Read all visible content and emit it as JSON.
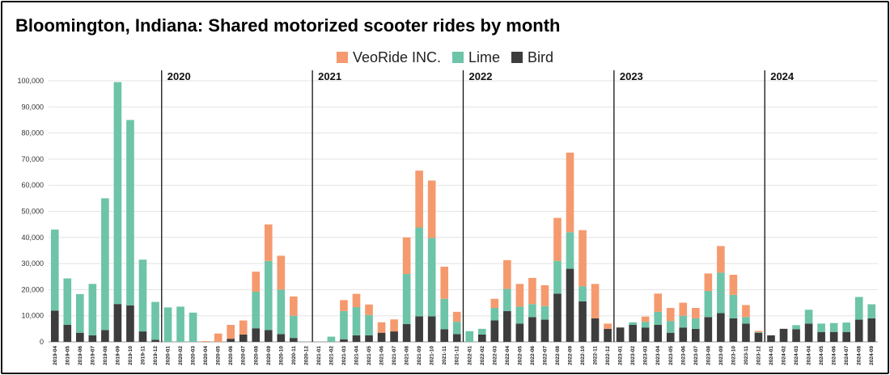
{
  "title": "Bloomington, Indiana: Shared motorized scooter rides by month",
  "chart_data": {
    "type": "bar",
    "stacked": true,
    "ylim": [
      0,
      100000
    ],
    "y_ticks": [
      "0",
      "10,000",
      "20,000",
      "30,000",
      "40,000",
      "50,000",
      "60,000",
      "70,000",
      "80,000",
      "90,000",
      "100,000"
    ],
    "legend_position": "top-center",
    "grid": true,
    "categories": [
      "2019-04",
      "2019-05",
      "2019-06",
      "2019-07",
      "2019-08",
      "2019-09",
      "2019-10",
      "2019-11",
      "2019-12",
      "2020-01",
      "2020-02",
      "2020-03",
      "2020-04",
      "2020-05",
      "2020-06",
      "2020-07",
      "2020-08",
      "2020-09",
      "2020-10",
      "2020-11",
      "2020-12",
      "2021-01",
      "2021-02",
      "2021-03",
      "2021-04",
      "2021-05",
      "2021-06",
      "2021-07",
      "2021-08",
      "2021-09",
      "2021-10",
      "2021-11",
      "2021-12",
      "2022-01",
      "2022-02",
      "2022-03",
      "2022-04",
      "2022-05",
      "2022-06",
      "2022-07",
      "2022-08",
      "2022-09",
      "2022-10",
      "2022-11",
      "2022-12",
      "2023-01",
      "2023-02",
      "2023-03",
      "2023-04",
      "2023-05",
      "2023-06",
      "2023-07",
      "2023-08",
      "2023-09",
      "2023-10",
      "2023-11",
      "2023-12",
      "2024-01",
      "2024-02",
      "2024-03",
      "2024-04",
      "2024-05",
      "2024-06",
      "2024-07",
      "2024-08",
      "2024-09"
    ],
    "series": [
      {
        "name": "Bird",
        "color": "#3d3d3d",
        "values": [
          12000,
          6500,
          3500,
          2500,
          4500,
          14500,
          14000,
          4000,
          800,
          0,
          0,
          0,
          0,
          0,
          1200,
          2800,
          5200,
          4500,
          3000,
          1500,
          0,
          0,
          0,
          1000,
          2500,
          2500,
          3500,
          4000,
          6800,
          9800,
          9800,
          4800,
          3000,
          0,
          2800,
          8200,
          11800,
          7000,
          9500,
          8500,
          18500,
          28000,
          15500,
          9000,
          5000,
          5500,
          6500,
          5500,
          6500,
          3500,
          5500,
          5000,
          9500,
          11000,
          9000,
          7000,
          3500,
          2500,
          5000,
          4800,
          7000,
          3800,
          3800,
          3800,
          8500,
          9000
        ]
      },
      {
        "name": "Lime",
        "color": "#6dc4a8",
        "values": [
          31000,
          17800,
          14800,
          19700,
          50500,
          85000,
          71000,
          27500,
          14500,
          13200,
          13500,
          11200,
          0,
          0,
          0,
          0,
          14000,
          26500,
          17000,
          8500,
          0,
          0,
          2000,
          10800,
          10800,
          7800,
          0,
          0,
          19200,
          34000,
          30000,
          11700,
          4700,
          4100,
          2200,
          4800,
          8500,
          6500,
          5000,
          5200,
          12500,
          14000,
          5800,
          0,
          0,
          0,
          1000,
          2200,
          5000,
          4500,
          4500,
          4000,
          10000,
          15500,
          9000,
          2500,
          200,
          0,
          0,
          1600,
          5300,
          3200,
          3400,
          3600,
          8700,
          5400
        ]
      },
      {
        "name": "VeoRide INC.",
        "color": "#f59a6e",
        "values": [
          0,
          0,
          0,
          0,
          0,
          0,
          0,
          0,
          0,
          0,
          0,
          0,
          300,
          3200,
          5300,
          5400,
          7700,
          14000,
          13000,
          7400,
          0,
          0,
          0,
          4200,
          5100,
          4000,
          4000,
          4600,
          14000,
          21800,
          22000,
          12300,
          3800,
          0,
          0,
          3500,
          11000,
          8700,
          10000,
          8000,
          16500,
          30500,
          21500,
          13200,
          2000,
          0,
          0,
          2000,
          7000,
          5000,
          5000,
          4000,
          6700,
          10200,
          7700,
          4600,
          500,
          0,
          0,
          0,
          0,
          0,
          0,
          0,
          0,
          0
        ]
      }
    ],
    "year_labels": [
      {
        "label": "2020",
        "after": "2019-12"
      },
      {
        "label": "2021",
        "after": "2020-12"
      },
      {
        "label": "2022",
        "after": "2021-12"
      },
      {
        "label": "2023",
        "after": "2022-12"
      },
      {
        "label": "2024",
        "after": "2023-12"
      }
    ]
  }
}
